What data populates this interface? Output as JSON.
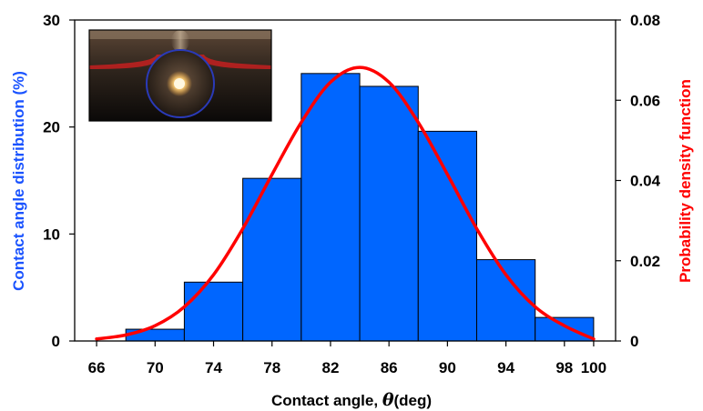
{
  "chart_data": {
    "type": "bar",
    "bin_edges": [
      68,
      72,
      76,
      80,
      84,
      88,
      92,
      96,
      100
    ],
    "values": [
      1.1,
      5.5,
      15.2,
      25.0,
      23.8,
      19.6,
      7.6,
      2.2
    ],
    "pdf_curve": {
      "x": [
        66,
        68,
        70,
        72,
        74,
        76,
        78,
        80,
        82,
        84,
        86,
        88,
        90,
        92,
        94,
        96,
        98,
        100
      ],
      "y": [
        0.0005,
        0.0015,
        0.0038,
        0.0085,
        0.0165,
        0.028,
        0.0415,
        0.0545,
        0.0645,
        0.0682,
        0.0645,
        0.0545,
        0.0415,
        0.028,
        0.0165,
        0.0085,
        0.0038,
        0.0005
      ]
    },
    "xlabel_text": "Contact angle,",
    "xlabel_symbol": "θ",
    "xlabel_unit": "(deg)",
    "ylabel_left": "Contact angle distribution (%)",
    "ylabel_right": "Probability density function",
    "xticks": [
      "66",
      "70",
      "74",
      "78",
      "82",
      "86",
      "90",
      "94",
      "98",
      "100"
    ],
    "xtick_values": [
      66,
      70,
      74,
      78,
      82,
      86,
      90,
      94,
      98,
      100
    ],
    "yticks_left": [
      "0",
      "10",
      "20",
      "30"
    ],
    "yticks_left_values": [
      0,
      10,
      20,
      30
    ],
    "yticks_right": [
      "0",
      "0.02",
      "0.04",
      "0.06",
      "0.08"
    ],
    "yticks_right_values": [
      0,
      0.02,
      0.04,
      0.06,
      0.08
    ],
    "xlim": [
      64.5,
      101.5
    ],
    "ylim_left": [
      0,
      30
    ],
    "ylim_right": [
      0,
      0.08
    ],
    "grid": false,
    "legend": "none",
    "inset": "photograph of a droplet at a liquid interface",
    "colors": {
      "bars": "#0066ff",
      "bar_edge": "#000000",
      "curve": "#ff0000",
      "left_axis_title": "#1a53ff",
      "right_axis_title": "#ff0000"
    }
  }
}
